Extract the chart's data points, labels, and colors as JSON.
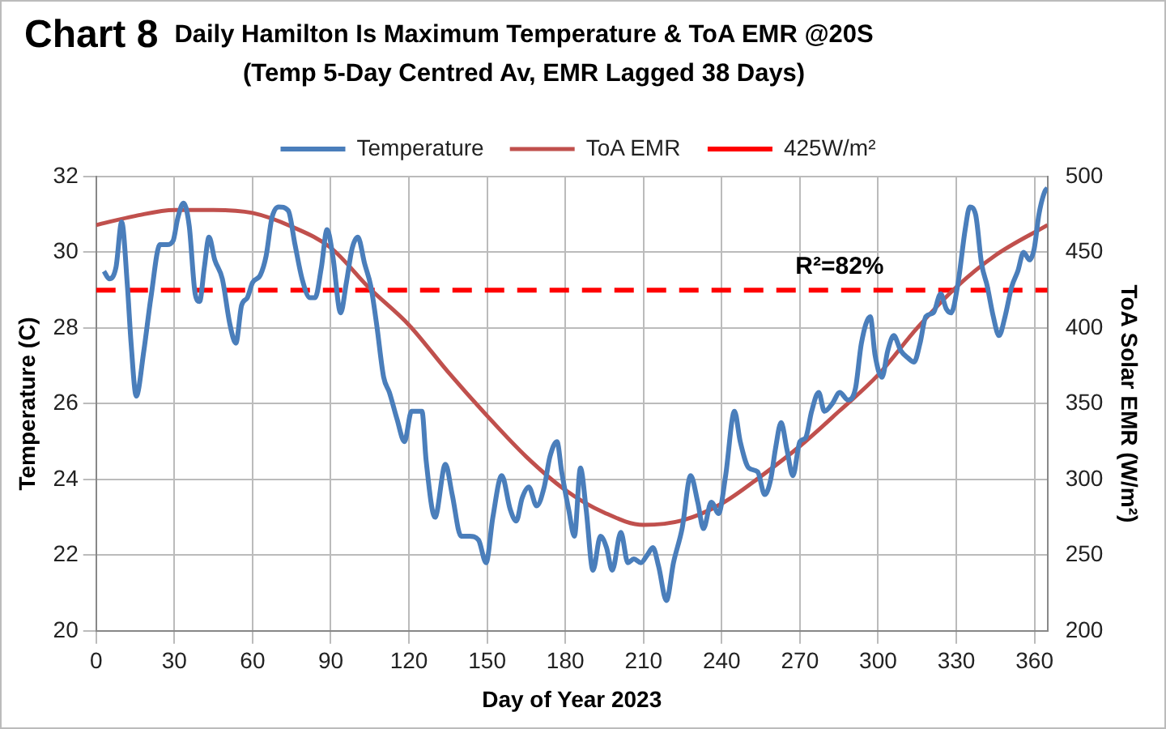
{
  "chart_data": {
    "type": "line",
    "title": "Chart 8",
    "subtitle": "Daily Hamilton Is Maximum Temperature & ToA EMR @20S\n(Temp 5-Day Centred Av, EMR Lagged 38 Days)",
    "xlabel": "Day of Year 2023",
    "ylabel": "Temperature (C)",
    "y2label": "ToA Solar EMR (W/m²)",
    "xlim": [
      0,
      365
    ],
    "xticks": [
      0,
      30,
      60,
      90,
      120,
      150,
      180,
      210,
      240,
      270,
      300,
      330,
      360
    ],
    "ylim": [
      20,
      32
    ],
    "yticks": [
      20,
      22,
      24,
      26,
      28,
      30,
      32
    ],
    "y2lim": [
      200,
      500
    ],
    "y2ticks": [
      200,
      250,
      300,
      350,
      400,
      450,
      500
    ],
    "grid": true,
    "legend": "top",
    "marker": "none",
    "line_style": "solid",
    "annotations": [
      "R²=82%"
    ],
    "ref_lines": [
      {
        "axis": "y2",
        "value": 425,
        "label": "425W/m²",
        "color": "#ff0000",
        "line_style": "dashed"
      }
    ],
    "series": [
      {
        "name": "Temperature",
        "color": "#4a7ebb",
        "x": [
          3,
          5,
          7.6,
          9.8,
          12,
          13.4,
          15.4,
          18.3,
          21,
          24.5,
          27.2,
          29.5,
          31.3,
          33.5,
          35.7,
          38,
          39.7,
          41.5,
          43.3,
          45.5,
          48.4,
          51.3,
          53.6,
          55.8,
          58,
          60,
          63,
          65.2,
          67.4,
          70,
          73.7,
          76.3,
          79,
          82,
          84,
          86.4,
          88.6,
          90.8,
          93.8,
          96,
          98.2,
          100.4,
          103,
          105.4,
          107.6,
          110.3,
          112.5,
          115.4,
          118.3,
          121,
          125,
          126.6,
          130,
          134,
          136.6,
          140,
          143.3,
          146.7,
          149.6,
          152.2,
          155.6,
          158.9,
          161.2,
          163.4,
          166,
          169,
          171.9,
          174.1,
          176.8,
          178.6,
          181.3,
          183.5,
          185.8,
          188,
          190.6,
          193.5,
          195.8,
          198,
          201.3,
          204,
          206.3,
          209,
          211.4,
          213.6,
          215.8,
          218.8,
          221.5,
          224.8,
          228.1,
          230.8,
          233,
          236,
          238.8,
          241.5,
          244.9,
          247.1,
          250.4,
          253.8,
          256.5,
          258.8,
          260.6,
          262.8,
          265,
          267.3,
          270,
          272.2,
          274.5,
          277.2,
          279.4,
          282.4,
          285.3,
          288.4,
          291.3,
          293.6,
          297,
          298.8,
          301.5,
          303.7,
          306,
          308.7,
          311.6,
          313.8,
          316.1,
          318.3,
          321.2,
          324,
          326.2,
          328,
          330.7,
          333.4,
          335.2,
          337.4,
          339.7,
          341.9,
          344.2,
          346.4,
          348.7,
          351.3,
          353.6,
          355.8,
          358.1,
          359.9,
          361.7,
          363.9,
          365
        ],
        "values": [
          29.5,
          29.3,
          29.6,
          30.8,
          29.1,
          27.6,
          26.2,
          27.4,
          28.8,
          30.2,
          30.2,
          30.3,
          30.9,
          31.3,
          30.7,
          28.9,
          28.7,
          29.6,
          30.4,
          29.8,
          29.3,
          28.1,
          27.6,
          28.6,
          28.8,
          29.2,
          29.4,
          29.9,
          30.9,
          31.2,
          31.1,
          30.2,
          29.3,
          28.8,
          28.8,
          29.6,
          30.6,
          29.9,
          28.4,
          29.2,
          30.1,
          30.4,
          29.7,
          29.1,
          28.1,
          26.7,
          26.3,
          25.6,
          25.0,
          25.8,
          25.8,
          24.5,
          23.0,
          24.4,
          23.6,
          22.5,
          22.5,
          22.4,
          21.8,
          23.0,
          24.1,
          23.2,
          22.9,
          23.5,
          23.8,
          23.3,
          23.8,
          24.6,
          25.0,
          24.2,
          23.2,
          22.5,
          24.3,
          23.2,
          21.6,
          22.5,
          22.2,
          21.6,
          22.6,
          21.8,
          21.9,
          21.8,
          22.0,
          22.2,
          21.7,
          20.8,
          21.8,
          22.7,
          24.1,
          23.4,
          22.7,
          23.4,
          23.1,
          24.1,
          25.8,
          25.0,
          24.3,
          24.2,
          23.6,
          24.0,
          24.8,
          25.5,
          24.8,
          24.1,
          25.0,
          25.1,
          25.8,
          26.3,
          25.8,
          26.0,
          26.3,
          26.1,
          26.4,
          27.6,
          28.3,
          27.3,
          26.7,
          27.4,
          27.8,
          27.4,
          27.2,
          27.1,
          27.6,
          28.3,
          28.4,
          28.9,
          28.5,
          28.4,
          29.2,
          30.6,
          31.2,
          31.0,
          29.7,
          29.1,
          28.3,
          27.8,
          28.3,
          29.1,
          29.5,
          30.0,
          29.8,
          30.1,
          31.0,
          31.6,
          31.7
        ]
      },
      {
        "name": "ToA EMR",
        "color": "#c0504d",
        "axis": "y2",
        "x": [
          0,
          15,
          30,
          45,
          60,
          75,
          90,
          105,
          120,
          135,
          150,
          165,
          180,
          195,
          210,
          225,
          240,
          255,
          270,
          285,
          300,
          315,
          330,
          345,
          365
        ],
        "values": [
          468,
          474,
          478,
          478,
          476,
          467,
          453,
          426,
          402,
          371,
          342,
          315,
          293,
          278,
          270,
          273,
          284,
          302,
          322,
          345,
          369,
          400,
          427,
          448,
          468
        ]
      }
    ]
  }
}
